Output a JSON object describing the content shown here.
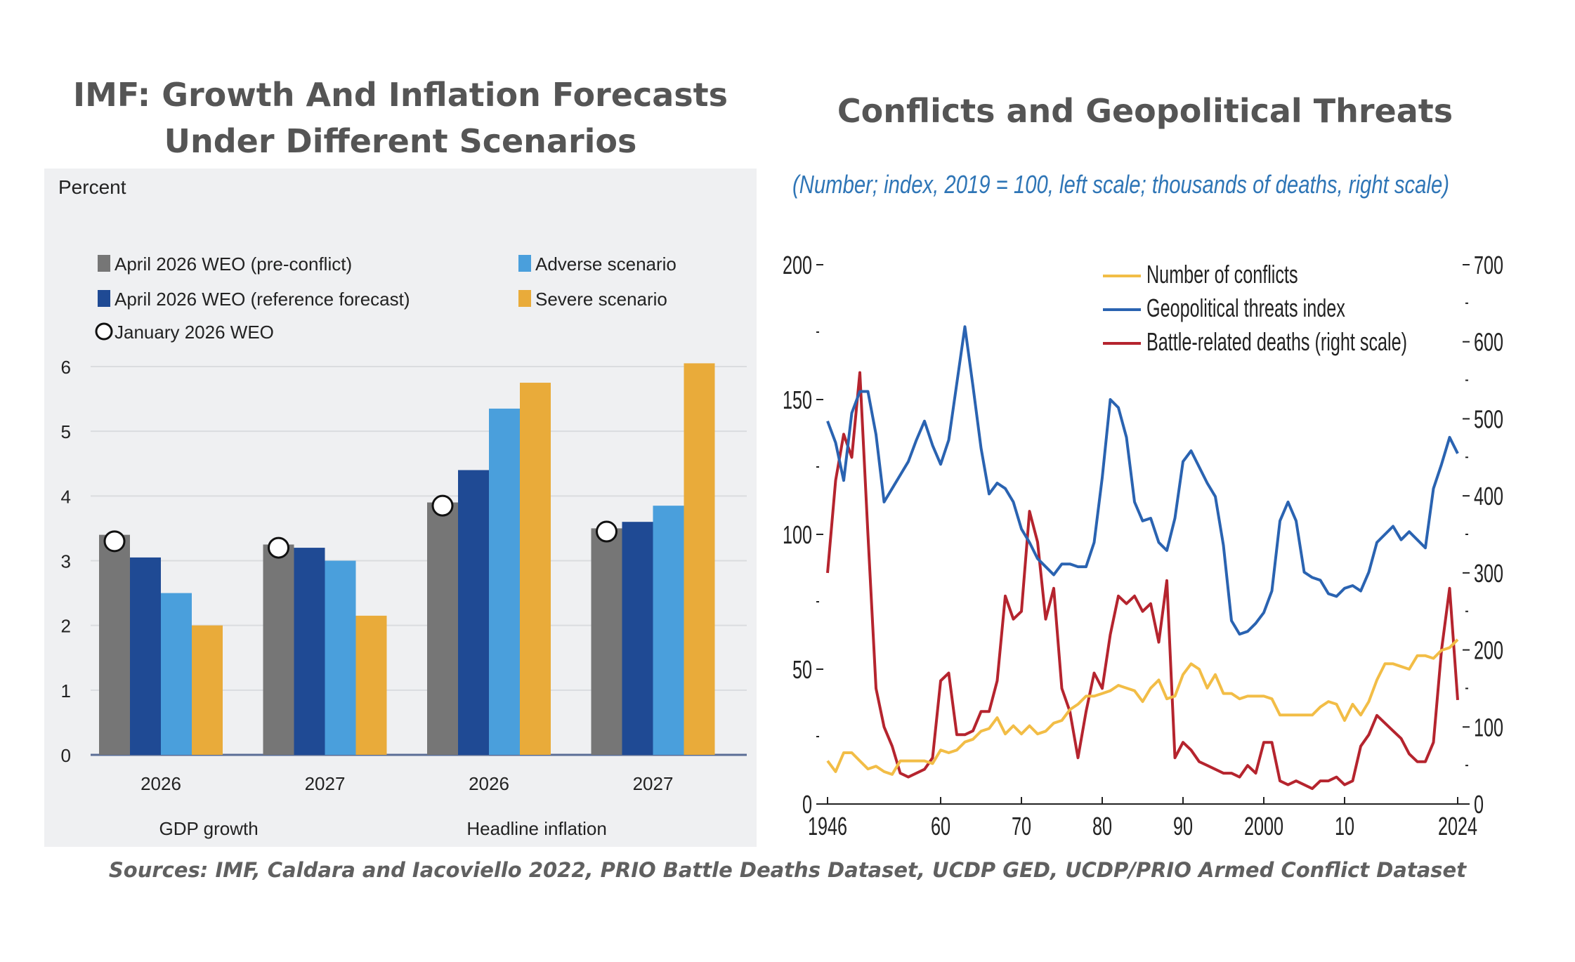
{
  "titles": {
    "left": "IMF: Growth And Inflation Forecasts Under Different Scenarios",
    "right": "Conflicts and Geopolitical Threats"
  },
  "sources": "Sources: IMF, Caldara and Iacoviello 2022, PRIO Battle Deaths Dataset, UCDP GED, UCDP/PRIO Armed Conflict Dataset",
  "colors": {
    "pre_conflict": "#767676",
    "reference": "#1f4a94",
    "adverse": "#4a9fdc",
    "severe": "#e9ab3a",
    "conflicts": "#f2bd46",
    "threats": "#2a63b1",
    "deaths": "#b5242e",
    "subtitle": "#2e75b6"
  },
  "chart_data": [
    {
      "type": "bar",
      "ylabel": "Percent",
      "ylim": [
        0,
        6
      ],
      "yticks": [
        0,
        1,
        2,
        3,
        4,
        5,
        6
      ],
      "categories": [
        "2026",
        "2027",
        "2026",
        "2027"
      ],
      "groups": [
        {
          "label": "GDP growth",
          "categories": [
            "2026",
            "2027"
          ]
        },
        {
          "label": "Headline inflation",
          "categories": [
            "2026",
            "2027"
          ]
        }
      ],
      "series": [
        {
          "name": "April 2026 WEO (pre-conflict)",
          "values": [
            3.4,
            3.25,
            3.9,
            3.5
          ]
        },
        {
          "name": "April 2026 WEO (reference forecast)",
          "values": [
            3.05,
            3.2,
            4.4,
            3.6
          ]
        },
        {
          "name": "Adverse scenario",
          "values": [
            2.5,
            3.0,
            5.35,
            3.85
          ]
        },
        {
          "name": "Severe scenario",
          "values": [
            2.0,
            2.15,
            5.75,
            6.05
          ]
        }
      ],
      "markers": {
        "name": "January 2026 WEO",
        "values": [
          3.3,
          3.2,
          3.85,
          3.45
        ]
      },
      "legend": "top",
      "grid": true
    },
    {
      "type": "line",
      "subtitle": "(Number; index, 2019 = 100, left scale; thousands of deaths, right scale)",
      "ylim": [
        0,
        200
      ],
      "yticks_left": [
        "0",
        "50",
        "100",
        "150",
        "200"
      ],
      "y2lim": [
        0,
        700
      ],
      "yticks_right": [
        "0",
        "100",
        "200",
        "300",
        "400",
        "500",
        "600",
        "700"
      ],
      "xlim": [
        1946,
        2024
      ],
      "xticks": [
        "1946",
        "60",
        "70",
        "80",
        "90",
        "2000",
        "10",
        "2024"
      ],
      "legend": "top-right",
      "grid": false,
      "series": [
        {
          "name": "Number of conflicts",
          "axis": "left",
          "x": [
            1946,
            1947,
            1948,
            1949,
            1950,
            1951,
            1952,
            1953,
            1954,
            1955,
            1956,
            1957,
            1958,
            1959,
            1960,
            1961,
            1962,
            1963,
            1964,
            1965,
            1966,
            1967,
            1968,
            1969,
            1970,
            1971,
            1972,
            1973,
            1974,
            1975,
            1976,
            1977,
            1978,
            1979,
            1980,
            1981,
            1982,
            1983,
            1984,
            1985,
            1986,
            1987,
            1988,
            1989,
            1990,
            1991,
            1992,
            1993,
            1994,
            1995,
            1996,
            1997,
            1998,
            1999,
            2000,
            2001,
            2002,
            2003,
            2004,
            2005,
            2006,
            2007,
            2008,
            2009,
            2010,
            2011,
            2012,
            2013,
            2014,
            2015,
            2016,
            2017,
            2018,
            2019,
            2020,
            2021,
            2022,
            2023,
            2024
          ],
          "values": [
            16,
            12,
            19,
            19,
            16,
            13,
            14,
            12,
            11,
            16,
            16,
            16,
            16,
            15,
            20,
            19,
            20,
            23,
            24,
            27,
            28,
            32,
            26,
            29,
            26,
            29,
            26,
            27,
            30,
            31,
            35,
            37,
            40,
            40,
            41,
            42,
            44,
            43,
            42,
            38,
            43,
            46,
            39,
            40,
            48,
            52,
            50,
            43,
            48,
            41,
            41,
            39,
            40,
            40,
            40,
            39,
            33,
            33,
            33,
            33,
            33,
            36,
            38,
            37,
            31,
            37,
            33,
            38,
            46,
            52,
            52,
            51,
            50,
            55,
            55,
            54,
            57,
            58,
            61
          ]
        },
        {
          "name": "Geopolitical threats index",
          "axis": "left",
          "x": [
            1946,
            1947,
            1948,
            1949,
            1950,
            1951,
            1952,
            1953,
            1954,
            1955,
            1956,
            1957,
            1958,
            1959,
            1960,
            1961,
            1962,
            1963,
            1964,
            1965,
            1966,
            1967,
            1968,
            1969,
            1970,
            1971,
            1972,
            1973,
            1974,
            1975,
            1976,
            1977,
            1978,
            1979,
            1980,
            1981,
            1982,
            1983,
            1984,
            1985,
            1986,
            1987,
            1988,
            1989,
            1990,
            1991,
            1992,
            1993,
            1994,
            1995,
            1996,
            1997,
            1998,
            1999,
            2000,
            2001,
            2002,
            2003,
            2004,
            2005,
            2006,
            2007,
            2008,
            2009,
            2010,
            2011,
            2012,
            2013,
            2014,
            2015,
            2016,
            2017,
            2018,
            2019,
            2020,
            2021,
            2022,
            2023,
            2024
          ],
          "values": [
            142,
            134,
            120,
            145,
            153,
            153,
            137,
            112,
            117,
            122,
            127,
            135,
            142,
            133,
            126,
            135,
            156,
            177,
            155,
            132,
            115,
            119,
            117,
            112,
            102,
            97,
            91,
            88,
            85,
            89,
            89,
            88,
            88,
            97,
            121,
            150,
            147,
            136,
            112,
            105,
            106,
            97,
            94,
            106,
            127,
            131,
            125,
            119,
            114,
            96,
            68,
            63,
            64,
            67,
            71,
            79,
            105,
            112,
            105,
            86,
            84,
            83,
            78,
            77,
            80,
            81,
            79,
            86,
            97,
            100,
            103,
            98,
            101,
            98,
            95,
            117,
            126,
            136,
            130
          ]
        },
        {
          "name": "Battle-related deaths (right scale)",
          "axis": "right",
          "x": [
            1946,
            1947,
            1948,
            1949,
            1950,
            1951,
            1952,
            1953,
            1954,
            1955,
            1956,
            1957,
            1958,
            1959,
            1960,
            1961,
            1962,
            1963,
            1964,
            1965,
            1966,
            1967,
            1968,
            1969,
            1970,
            1971,
            1972,
            1973,
            1974,
            1975,
            1976,
            1977,
            1978,
            1979,
            1980,
            1981,
            1982,
            1983,
            1984,
            1985,
            1986,
            1987,
            1988,
            1989,
            1990,
            1991,
            1992,
            1993,
            1994,
            1995,
            1996,
            1997,
            1998,
            1999,
            2000,
            2001,
            2002,
            2003,
            2004,
            2005,
            2006,
            2007,
            2008,
            2009,
            2010,
            2011,
            2012,
            2013,
            2014,
            2015,
            2016,
            2017,
            2018,
            2019,
            2020,
            2021,
            2022,
            2023,
            2024
          ],
          "values": [
            300,
            420,
            480,
            450,
            560,
            350,
            150,
            100,
            75,
            40,
            35,
            40,
            45,
            60,
            160,
            170,
            90,
            90,
            95,
            120,
            120,
            160,
            270,
            240,
            250,
            380,
            340,
            240,
            280,
            150,
            120,
            60,
            120,
            170,
            150,
            220,
            270,
            260,
            270,
            250,
            260,
            210,
            290,
            60,
            80,
            70,
            55,
            50,
            45,
            40,
            40,
            35,
            50,
            40,
            80,
            80,
            30,
            25,
            30,
            25,
            20,
            30,
            30,
            35,
            25,
            30,
            75,
            90,
            115,
            105,
            95,
            85,
            65,
            55,
            55,
            80,
            200,
            280,
            135
          ]
        }
      ]
    }
  ]
}
